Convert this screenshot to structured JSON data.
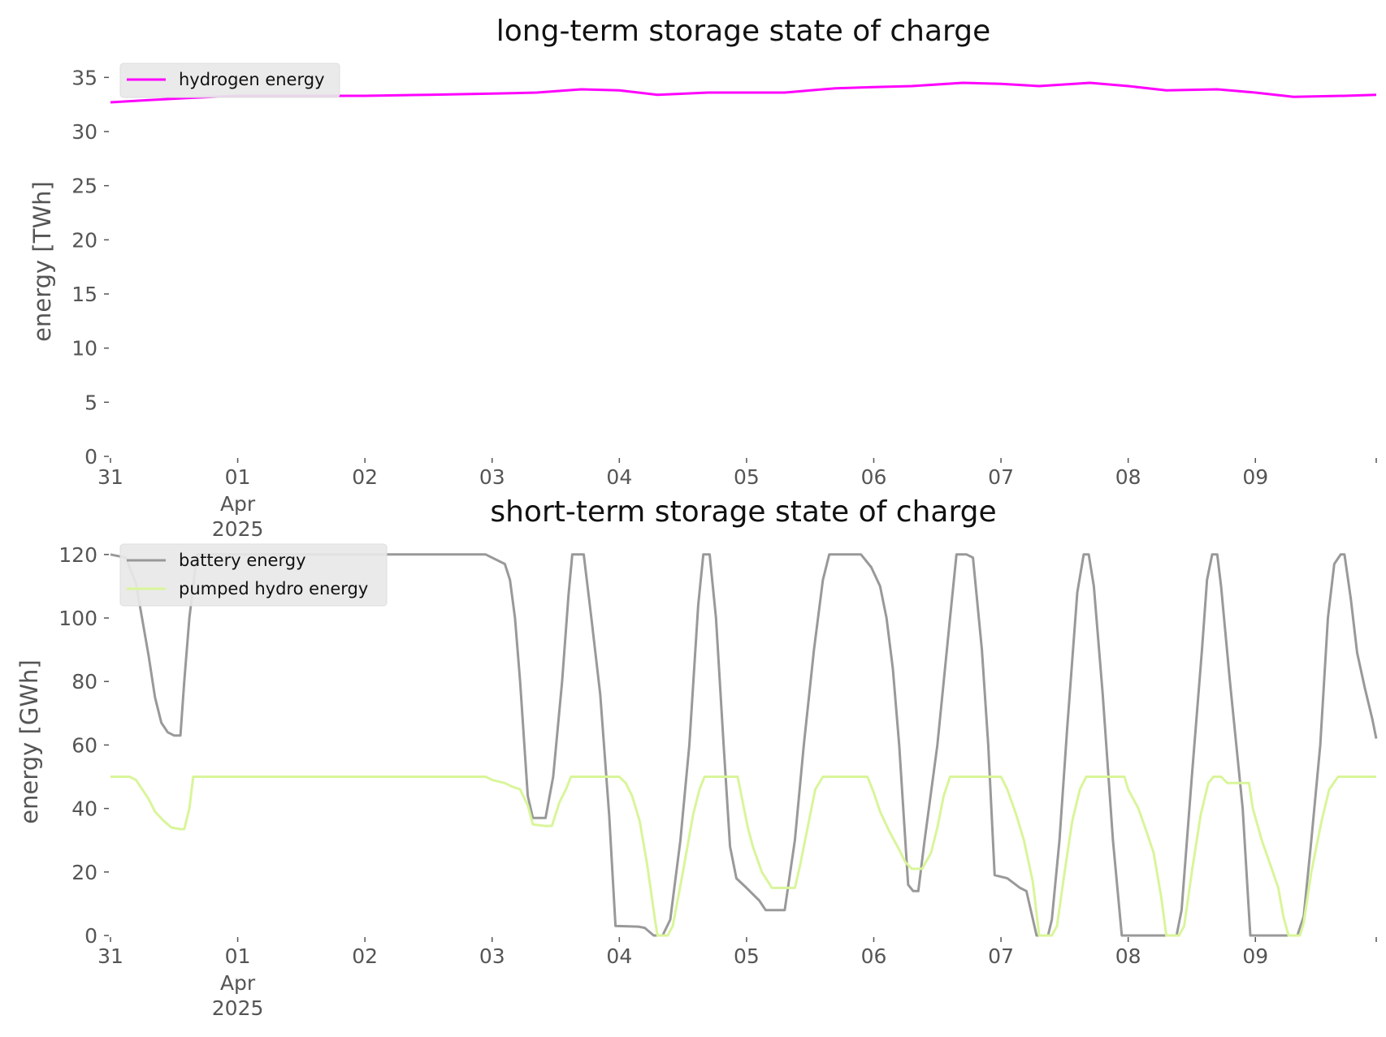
{
  "chart_data": [
    {
      "type": "line",
      "title": "long-term storage state of charge",
      "ylabel": "energy [TWh]",
      "xlabel": "",
      "ylim": [
        0,
        36
      ],
      "yticks": [
        0,
        5,
        10,
        15,
        20,
        25,
        30,
        35
      ],
      "xticks": [
        {
          "x": 0,
          "label": "31"
        },
        {
          "x": 1,
          "label": "01",
          "sub": [
            "Apr",
            "2025"
          ]
        },
        {
          "x": 2,
          "label": "02"
        },
        {
          "x": 3,
          "label": "03"
        },
        {
          "x": 4,
          "label": "04"
        },
        {
          "x": 5,
          "label": "05"
        },
        {
          "x": 6,
          "label": "06"
        },
        {
          "x": 7,
          "label": "07"
        },
        {
          "x": 8,
          "label": "08"
        },
        {
          "x": 9,
          "label": "09"
        }
      ],
      "xlim": [
        0,
        9.95
      ],
      "x_unit": "days since 31 Mar 2025",
      "legend_position": "top-left",
      "series": [
        {
          "name": "hydrogen energy",
          "color": "#ff00ff",
          "points": [
            [
              0,
              32.7
            ],
            [
              0.3,
              32.9
            ],
            [
              0.6,
              33.1
            ],
            [
              1.0,
              33.3
            ],
            [
              1.5,
              33.3
            ],
            [
              2.0,
              33.3
            ],
            [
              2.5,
              33.4
            ],
            [
              3.0,
              33.5
            ],
            [
              3.35,
              33.6
            ],
            [
              3.7,
              33.9
            ],
            [
              4.0,
              33.8
            ],
            [
              4.3,
              33.4
            ],
            [
              4.7,
              33.6
            ],
            [
              5.0,
              33.6
            ],
            [
              5.3,
              33.6
            ],
            [
              5.7,
              34.0
            ],
            [
              6.0,
              34.1
            ],
            [
              6.3,
              34.2
            ],
            [
              6.7,
              34.5
            ],
            [
              7.0,
              34.4
            ],
            [
              7.3,
              34.2
            ],
            [
              7.7,
              34.5
            ],
            [
              8.0,
              34.2
            ],
            [
              8.3,
              33.8
            ],
            [
              8.7,
              33.9
            ],
            [
              9.0,
              33.6
            ],
            [
              9.3,
              33.2
            ],
            [
              9.7,
              33.3
            ],
            [
              9.95,
              33.4
            ]
          ]
        }
      ]
    },
    {
      "type": "line",
      "title": "short-term storage state of charge",
      "ylabel": "energy [GWh]",
      "xlabel": "",
      "ylim": [
        0,
        122
      ],
      "yticks": [
        0,
        20,
        40,
        60,
        80,
        100,
        120
      ],
      "xticks": [
        {
          "x": 0,
          "label": "31"
        },
        {
          "x": 1,
          "label": "01",
          "sub": [
            "Apr",
            "2025"
          ]
        },
        {
          "x": 2,
          "label": "02"
        },
        {
          "x": 3,
          "label": "03"
        },
        {
          "x": 4,
          "label": "04"
        },
        {
          "x": 5,
          "label": "05"
        },
        {
          "x": 6,
          "label": "06"
        },
        {
          "x": 7,
          "label": "07"
        },
        {
          "x": 8,
          "label": "08"
        },
        {
          "x": 9,
          "label": "09"
        }
      ],
      "xlim": [
        0,
        9.95
      ],
      "x_unit": "days since 31 Mar 2025",
      "legend_position": "top-left",
      "series": [
        {
          "name": "battery energy",
          "color": "#999999",
          "points": [
            [
              0,
              120
            ],
            [
              0.12,
              119
            ],
            [
              0.2,
              111
            ],
            [
              0.3,
              88
            ],
            [
              0.35,
              75
            ],
            [
              0.4,
              67
            ],
            [
              0.45,
              64
            ],
            [
              0.5,
              63
            ],
            [
              0.55,
              63
            ],
            [
              0.58,
              80
            ],
            [
              0.62,
              100
            ],
            [
              0.68,
              120
            ],
            [
              1.0,
              120
            ],
            [
              2.0,
              120
            ],
            [
              2.95,
              120
            ],
            [
              3.1,
              117
            ],
            [
              3.14,
              112
            ],
            [
              3.18,
              100
            ],
            [
              3.22,
              80
            ],
            [
              3.28,
              44
            ],
            [
              3.32,
              37
            ],
            [
              3.42,
              37
            ],
            [
              3.48,
              50
            ],
            [
              3.55,
              80
            ],
            [
              3.6,
              107
            ],
            [
              3.63,
              120
            ],
            [
              3.72,
              120
            ],
            [
              3.78,
              100
            ],
            [
              3.85,
              76
            ],
            [
              3.92,
              38
            ],
            [
              3.97,
              3
            ],
            [
              4.15,
              2.8
            ],
            [
              4.2,
              2.4
            ],
            [
              4.27,
              0
            ],
            [
              4.34,
              0
            ],
            [
              4.4,
              5
            ],
            [
              4.48,
              30
            ],
            [
              4.55,
              60
            ],
            [
              4.62,
              104
            ],
            [
              4.66,
              120
            ],
            [
              4.71,
              120
            ],
            [
              4.76,
              100
            ],
            [
              4.82,
              60
            ],
            [
              4.87,
              28
            ],
            [
              4.92,
              18
            ],
            [
              5.0,
              15
            ],
            [
              5.1,
              11
            ],
            [
              5.15,
              8
            ],
            [
              5.2,
              8
            ],
            [
              5.3,
              8
            ],
            [
              5.38,
              30
            ],
            [
              5.45,
              60
            ],
            [
              5.53,
              90
            ],
            [
              5.6,
              112
            ],
            [
              5.65,
              120
            ],
            [
              5.9,
              120
            ],
            [
              5.98,
              116
            ],
            [
              6.05,
              110
            ],
            [
              6.1,
              100
            ],
            [
              6.15,
              84
            ],
            [
              6.2,
              60
            ],
            [
              6.27,
              16
            ],
            [
              6.31,
              14
            ],
            [
              6.35,
              14
            ],
            [
              6.4,
              30
            ],
            [
              6.5,
              60
            ],
            [
              6.6,
              100
            ],
            [
              6.65,
              120
            ],
            [
              6.73,
              120
            ],
            [
              6.78,
              119
            ],
            [
              6.85,
              90
            ],
            [
              6.9,
              60
            ],
            [
              6.95,
              19
            ],
            [
              7.05,
              18
            ],
            [
              7.15,
              15
            ],
            [
              7.2,
              14
            ],
            [
              7.28,
              0
            ],
            [
              7.37,
              0
            ],
            [
              7.4,
              5
            ],
            [
              7.46,
              30
            ],
            [
              7.52,
              65
            ],
            [
              7.6,
              108
            ],
            [
              7.65,
              120
            ],
            [
              7.69,
              120
            ],
            [
              7.73,
              110
            ],
            [
              7.8,
              76
            ],
            [
              7.88,
              30
            ],
            [
              7.95,
              0
            ],
            [
              8.0,
              0
            ],
            [
              8.28,
              0
            ],
            [
              8.38,
              0
            ],
            [
              8.42,
              8
            ],
            [
              8.5,
              50
            ],
            [
              8.58,
              90
            ],
            [
              8.62,
              112
            ],
            [
              8.66,
              120
            ],
            [
              8.7,
              120
            ],
            [
              8.73,
              110
            ],
            [
              8.8,
              80
            ],
            [
              8.9,
              40
            ],
            [
              8.96,
              0
            ],
            [
              9.0,
              0
            ],
            [
              9.26,
              0
            ],
            [
              9.33,
              0
            ],
            [
              9.38,
              6
            ],
            [
              9.44,
              30
            ],
            [
              9.51,
              60
            ],
            [
              9.57,
              100
            ],
            [
              9.62,
              117
            ],
            [
              9.67,
              120
            ],
            [
              9.7,
              120
            ],
            [
              9.75,
              106
            ],
            [
              9.8,
              89
            ],
            [
              9.86,
              78
            ],
            [
              9.92,
              68
            ],
            [
              9.95,
              62
            ]
          ]
        },
        {
          "name": "pumped hydro energy",
          "color": "#d9f59a",
          "points": [
            [
              0,
              50
            ],
            [
              0.15,
              50
            ],
            [
              0.2,
              49
            ],
            [
              0.25,
              46
            ],
            [
              0.3,
              43
            ],
            [
              0.35,
              39
            ],
            [
              0.42,
              36
            ],
            [
              0.48,
              34
            ],
            [
              0.55,
              33.5
            ],
            [
              0.58,
              33.5
            ],
            [
              0.62,
              40
            ],
            [
              0.65,
              50
            ],
            [
              1.0,
              50
            ],
            [
              2.0,
              50
            ],
            [
              2.95,
              50
            ],
            [
              3.0,
              49
            ],
            [
              3.1,
              48
            ],
            [
              3.15,
              47
            ],
            [
              3.22,
              46
            ],
            [
              3.28,
              41
            ],
            [
              3.32,
              35
            ],
            [
              3.42,
              34.5
            ],
            [
              3.47,
              34.5
            ],
            [
              3.53,
              42
            ],
            [
              3.58,
              46
            ],
            [
              3.62,
              50
            ],
            [
              4.0,
              50
            ],
            [
              4.05,
              48
            ],
            [
              4.1,
              44
            ],
            [
              4.16,
              36
            ],
            [
              4.22,
              22
            ],
            [
              4.28,
              5
            ],
            [
              4.3,
              0
            ],
            [
              4.38,
              0
            ],
            [
              4.42,
              3
            ],
            [
              4.5,
              20
            ],
            [
              4.58,
              38
            ],
            [
              4.63,
              46
            ],
            [
              4.67,
              50
            ],
            [
              4.93,
              50
            ],
            [
              4.97,
              42
            ],
            [
              5.01,
              34
            ],
            [
              5.05,
              28
            ],
            [
              5.12,
              20
            ],
            [
              5.2,
              15
            ],
            [
              5.3,
              15
            ],
            [
              5.38,
              15
            ],
            [
              5.42,
              22
            ],
            [
              5.48,
              34
            ],
            [
              5.54,
              46
            ],
            [
              5.6,
              50
            ],
            [
              5.95,
              50
            ],
            [
              6.0,
              45
            ],
            [
              6.05,
              39
            ],
            [
              6.12,
              33
            ],
            [
              6.2,
              27
            ],
            [
              6.25,
              23
            ],
            [
              6.3,
              21
            ],
            [
              6.38,
              21
            ],
            [
              6.45,
              26
            ],
            [
              6.5,
              34
            ],
            [
              6.55,
              44
            ],
            [
              6.6,
              50
            ],
            [
              7.0,
              50
            ],
            [
              7.05,
              46
            ],
            [
              7.12,
              38
            ],
            [
              7.18,
              30
            ],
            [
              7.25,
              17
            ],
            [
              7.3,
              0
            ],
            [
              7.4,
              0
            ],
            [
              7.44,
              3
            ],
            [
              7.5,
              20
            ],
            [
              7.56,
              36
            ],
            [
              7.62,
              46
            ],
            [
              7.67,
              50
            ],
            [
              7.97,
              50
            ],
            [
              8.0,
              46
            ],
            [
              8.08,
              40
            ],
            [
              8.15,
              32
            ],
            [
              8.2,
              26
            ],
            [
              8.26,
              12
            ],
            [
              8.3,
              0
            ],
            [
              8.4,
              0
            ],
            [
              8.44,
              3
            ],
            [
              8.5,
              20
            ],
            [
              8.57,
              38
            ],
            [
              8.63,
              48
            ],
            [
              8.67,
              50
            ],
            [
              8.73,
              50
            ],
            [
              8.78,
              48
            ],
            [
              8.85,
              48
            ],
            [
              8.95,
              48
            ],
            [
              8.98,
              40
            ],
            [
              9.05,
              30
            ],
            [
              9.12,
              22
            ],
            [
              9.18,
              15
            ],
            [
              9.22,
              6
            ],
            [
              9.26,
              0
            ],
            [
              9.35,
              0
            ],
            [
              9.38,
              4
            ],
            [
              9.44,
              20
            ],
            [
              9.52,
              36
            ],
            [
              9.58,
              46
            ],
            [
              9.65,
              50
            ],
            [
              9.95,
              50
            ]
          ]
        }
      ]
    }
  ]
}
